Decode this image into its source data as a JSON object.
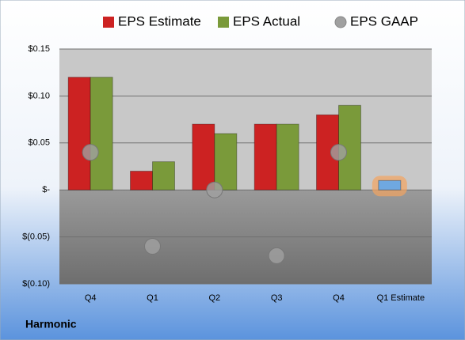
{
  "chart_data": {
    "type": "bar",
    "title": "Harmonic",
    "categories": [
      "Q4",
      "Q1",
      "Q2",
      "Q3",
      "Q4",
      "Q1 Estimate"
    ],
    "series": [
      {
        "name": "EPS Estimate",
        "color": "#cc2222",
        "colors": [
          "#cc2222",
          "#cc2222",
          "#cc2222",
          "#cc2222",
          "#cc2222",
          "#6fa8e0"
        ],
        "values": [
          0.12,
          0.02,
          0.07,
          0.07,
          0.08,
          0.01
        ]
      },
      {
        "name": "EPS Actual",
        "color": "#7a9a3a",
        "values": [
          0.12,
          0.03,
          0.06,
          0.07,
          0.09,
          null
        ]
      },
      {
        "name": "EPS GAAP",
        "color": "#a0a0a0",
        "marker": "circle",
        "values": [
          0.04,
          -0.06,
          0.0,
          -0.07,
          0.04,
          null
        ]
      }
    ],
    "ylim": [
      -0.1,
      0.15
    ],
    "yticks": [
      {
        "value": 0.15,
        "label": "$0.15"
      },
      {
        "value": 0.1,
        "label": "$0.10"
      },
      {
        "value": 0.05,
        "label": "$0.05"
      },
      {
        "value": 0,
        "label": "$-"
      },
      {
        "value": -0.05,
        "label": "$(0.05)"
      },
      {
        "value": -0.1,
        "label": "$(0.10)"
      }
    ],
    "grid": true,
    "legend": "top"
  }
}
